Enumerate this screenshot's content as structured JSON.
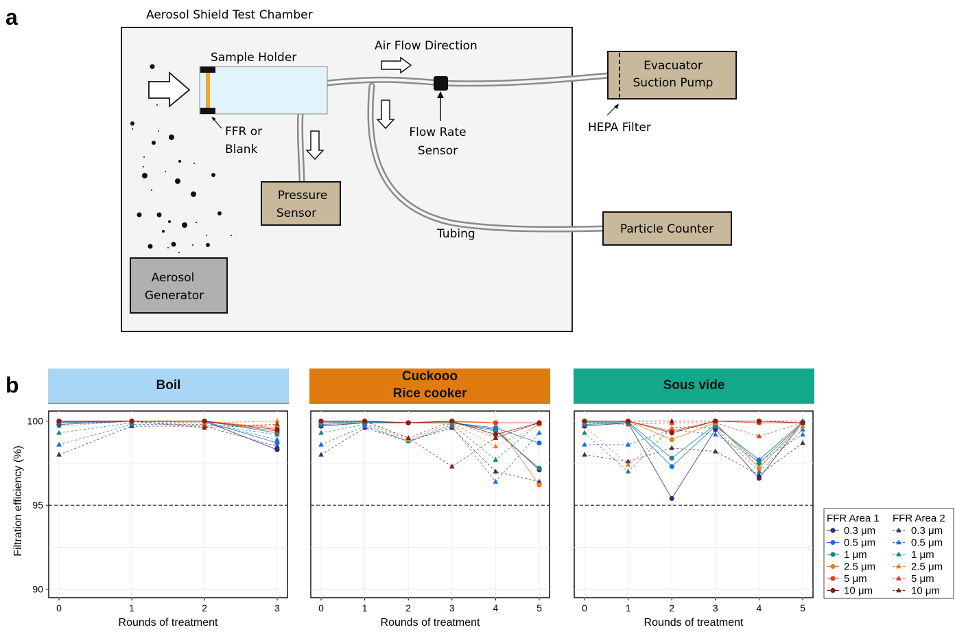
{
  "panel_labels": [
    "a",
    "b"
  ],
  "diagram": {
    "title": "Aerosol Shield Test Chamber",
    "sample_holder": "Sample Holder",
    "air_flow": "Air Flow Direction",
    "ffr_label": "FFR or\nBlank",
    "pressure_sensor": "Pressure\nSensor",
    "flow_rate_sensor": "Flow Rate\nSensor",
    "evacuator": "Evacuator\nSuction Pump",
    "hepa": "HEPA Filter",
    "particle_counter": "Particle Counter",
    "tubing": "Tubing",
    "aerosol_generator": "Aerosol\nGenerator"
  },
  "colors": {
    "0.3": "#3b2a6b",
    "0.5": "#1a6ee0",
    "1": "#17877f",
    "2.5": "#f07d26",
    "5": "#e63b1c",
    "10": "#8b1c10",
    "boil": "#a9d6f5",
    "cuckoo": "#e07b10",
    "sousvide": "#12a88a"
  },
  "chart_data": {
    "type": "line",
    "ylabel": "Filtration efficiency (%)",
    "xlabel": "Rounds of treatment",
    "ylim": [
      89.5,
      100.6
    ],
    "yticks": [
      90,
      95,
      100
    ],
    "reference_line": 95,
    "legend": {
      "area1_title": "FFR  Area 1",
      "area2_title": "FFR  Area 2",
      "sizes": [
        "0.3 μm",
        "0.5 μm",
        "1 μm",
        "2.5 μm",
        "5 μm",
        "10 μm"
      ]
    },
    "panels": [
      {
        "title": "Boil",
        "x": [
          0,
          1,
          2,
          3
        ],
        "area1": [
          {
            "name": "0.3 μm",
            "values": [
              99.8,
              100,
              100,
              98.3
            ]
          },
          {
            "name": "0.5 μm",
            "values": [
              99.9,
              100,
              100,
              98.7
            ]
          },
          {
            "name": "1 μm",
            "values": [
              99.95,
              100,
              100,
              99.3
            ]
          },
          {
            "name": "2.5 μm",
            "values": [
              100,
              100,
              100,
              99.6
            ]
          },
          {
            "name": "5 μm",
            "values": [
              100,
              100,
              100,
              99.4
            ]
          },
          {
            "name": "10 μm",
            "values": [
              100,
              100,
              100,
              99.5
            ]
          }
        ],
        "area2": [
          {
            "name": "0.3 μm",
            "values": [
              98.0,
              99.7,
              99.7,
              98.5
            ]
          },
          {
            "name": "0.5 μm",
            "values": [
              98.6,
              99.8,
              99.8,
              99.2
            ]
          },
          {
            "name": "1 μm",
            "values": [
              99.3,
              99.9,
              99.9,
              98.9
            ]
          },
          {
            "name": "2.5 μm",
            "values": [
              99.7,
              100,
              99.9,
              100
            ]
          },
          {
            "name": "5 μm",
            "values": [
              99.9,
              100,
              99.7,
              99.8
            ]
          },
          {
            "name": "10 μm",
            "values": [
              100,
              100,
              99.6,
              99.8
            ]
          }
        ]
      },
      {
        "title": "Cuckooo\nRice cooker",
        "x": [
          0,
          1,
          2,
          3,
          4,
          5
        ],
        "area1": [
          {
            "name": "0.3 μm",
            "values": [
              99.7,
              99.9,
              99.9,
              99.9,
              99.5,
              97.1
            ]
          },
          {
            "name": "0.5 μm",
            "values": [
              99.8,
              99.9,
              99.9,
              99.9,
              99.6,
              98.7
            ]
          },
          {
            "name": "1 μm",
            "values": [
              99.9,
              99.95,
              99.9,
              99.9,
              99.4,
              97.2
            ]
          },
          {
            "name": "2.5 μm",
            "values": [
              99.95,
              100,
              99.9,
              99.95,
              99.9,
              96.2
            ]
          },
          {
            "name": "5 μm",
            "values": [
              100,
              100,
              99.9,
              100,
              99.9,
              99.9
            ]
          },
          {
            "name": "10 μm",
            "values": [
              100,
              100,
              99.9,
              100,
              99.2,
              99.9
            ]
          }
        ],
        "area2": [
          {
            "name": "0.3 μm",
            "values": [
              98.0,
              99.6,
              98.8,
              99.6,
              97.0,
              96.4
            ]
          },
          {
            "name": "0.5 μm",
            "values": [
              98.6,
              99.7,
              98.8,
              99.7,
              96.4,
              99.3
            ]
          },
          {
            "name": "1 μm",
            "values": [
              99.3,
              99.8,
              98.8,
              99.8,
              97.7,
              99.9
            ]
          },
          {
            "name": "2.5 μm",
            "values": [
              99.7,
              99.9,
              98.9,
              99.9,
              98.5,
              99.8
            ]
          },
          {
            "name": "5 μm",
            "values": [
              99.9,
              100,
              99.0,
              100,
              99.0,
              99.9
            ]
          },
          {
            "name": "10 μm",
            "values": [
              100,
              100,
              99.0,
              97.3,
              99.0,
              99.9
            ]
          }
        ]
      },
      {
        "title": "Sous vide",
        "x": [
          0,
          1,
          2,
          3,
          4,
          5
        ],
        "area1": [
          {
            "name": "0.3 μm",
            "values": [
              99.7,
              99.9,
              95.4,
              99.5,
              96.6,
              99.95
            ]
          },
          {
            "name": "0.5 μm",
            "values": [
              99.8,
              99.9,
              97.3,
              99.7,
              97.7,
              99.95
            ]
          },
          {
            "name": "1 μm",
            "values": [
              99.9,
              99.95,
              97.8,
              99.8,
              97.5,
              99.9
            ]
          },
          {
            "name": "2.5 μm",
            "values": [
              99.95,
              100,
              98.9,
              99.9,
              97.2,
              99.9
            ]
          },
          {
            "name": "5 μm",
            "values": [
              100,
              100,
              99.4,
              100,
              99.9,
              99.9
            ]
          },
          {
            "name": "10 μm",
            "values": [
              100,
              100,
              99.3,
              100,
              100,
              99.9
            ]
          }
        ],
        "area2": [
          {
            "name": "0.3 μm",
            "values": [
              98.0,
              97.6,
              98.4,
              98.2,
              96.8,
              98.7
            ]
          },
          {
            "name": "0.5 μm",
            "values": [
              98.6,
              98.6,
              99.5,
              99.2,
              97.6,
              99.2
            ]
          },
          {
            "name": "1 μm",
            "values": [
              99.3,
              97.0,
              99.6,
              99.6,
              97.0,
              99.5
            ]
          },
          {
            "name": "2.5 μm",
            "values": [
              99.7,
              97.4,
              99.6,
              99.8,
              97.3,
              99.7
            ]
          },
          {
            "name": "5 μm",
            "values": [
              99.9,
              99.8,
              99.9,
              99.9,
              99.1,
              99.9
            ]
          },
          {
            "name": "10 μm",
            "values": [
              100,
              100,
              100,
              100,
              100,
              100
            ]
          }
        ]
      }
    ]
  }
}
